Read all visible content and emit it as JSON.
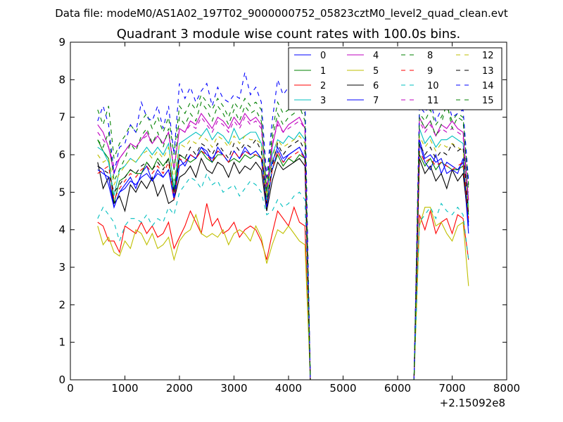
{
  "chart_data": {
    "type": "line",
    "suptitle": "Data file: modeM0/AS1A02_197T02_9000000752_05823cztM0_level2_quad_clean.evt",
    "title": "Quadrant 3 module wise count rates with 100.0s bins.",
    "xlabel": "",
    "ylabel": "",
    "xlim": [
      0,
      8000
    ],
    "ylim": [
      0,
      9
    ],
    "x_offset_label": "+2.15092e8",
    "x_ticks": [
      "0",
      "1000",
      "2000",
      "3000",
      "4000",
      "5000",
      "6000",
      "7000",
      "8000"
    ],
    "y_ticks": [
      "0",
      "1",
      "2",
      "3",
      "4",
      "5",
      "6",
      "7",
      "8",
      "9"
    ],
    "grid": false,
    "legend_position": "top-right",
    "legend_columns": 4,
    "x": [
      500,
      600,
      700,
      800,
      900,
      1000,
      1100,
      1200,
      1300,
      1400,
      1500,
      1600,
      1700,
      1800,
      1900,
      2000,
      2100,
      2200,
      2300,
      2400,
      2500,
      2600,
      2700,
      2800,
      2900,
      3000,
      3100,
      3200,
      3300,
      3400,
      3500,
      3600,
      3700,
      3800,
      3900,
      4000,
      4100,
      4200,
      4300,
      4400,
      4500,
      4600,
      4700,
      4800,
      4900,
      5000,
      5100,
      5200,
      5300,
      5400,
      5500,
      5600,
      5700,
      5800,
      5900,
      6000,
      6100,
      6200,
      6300,
      6400,
      6500,
      6600,
      6700,
      6800,
      6900,
      7000,
      7100,
      7200,
      7300
    ],
    "series": [
      {
        "name": "0",
        "color": "#0000ff",
        "dash": "solid",
        "values": [
          5.7,
          5.6,
          5.2,
          4.6,
          5.0,
          5.2,
          5.4,
          5.1,
          5.5,
          5.7,
          5.3,
          5.6,
          5.4,
          5.6,
          4.9,
          5.9,
          5.7,
          6.0,
          5.9,
          6.2,
          6.1,
          5.8,
          6.2,
          6.0,
          5.8,
          6.1,
          5.9,
          6.2,
          6.0,
          6.1,
          5.9,
          5.1,
          5.8,
          6.2,
          5.9,
          6.0,
          6.1,
          6.2,
          5.9,
          0,
          0,
          0,
          0,
          0,
          0,
          0,
          0,
          0,
          0,
          0,
          0,
          0,
          0,
          0,
          0,
          0,
          0,
          0,
          0,
          6.3,
          5.8,
          5.6,
          6.0,
          5.5,
          5.8,
          5.7,
          5.6,
          5.8,
          3.9
        ]
      },
      {
        "name": "1",
        "color": "#008000",
        "dash": "solid",
        "values": [
          6.4,
          6.1,
          5.9,
          4.7,
          5.3,
          5.4,
          5.6,
          5.5,
          5.5,
          5.8,
          5.6,
          5.9,
          5.7,
          5.9,
          5.0,
          6.0,
          5.9,
          5.8,
          5.9,
          6.1,
          5.9,
          5.8,
          6.0,
          6.0,
          5.8,
          5.9,
          5.8,
          6.0,
          5.9,
          6.0,
          5.9,
          4.7,
          5.6,
          6.0,
          5.7,
          5.9,
          5.8,
          6.0,
          5.9,
          0,
          0,
          0,
          0,
          0,
          0,
          0,
          0,
          0,
          0,
          0,
          0,
          0,
          0,
          0,
          0,
          0,
          0,
          0,
          0,
          6.0,
          5.7,
          5.9,
          5.6,
          5.8,
          5.7,
          5.6,
          5.6,
          5.7,
          4.4
        ]
      },
      {
        "name": "2",
        "color": "#ff0000",
        "dash": "solid",
        "values": [
          4.2,
          4.1,
          3.7,
          3.7,
          3.4,
          4.1,
          4.0,
          3.9,
          4.2,
          3.9,
          4.1,
          3.8,
          3.9,
          4.2,
          3.5,
          3.8,
          4.1,
          4.5,
          4.2,
          3.9,
          4.7,
          4.1,
          4.3,
          3.9,
          4.0,
          4.2,
          3.8,
          4.0,
          4.1,
          4.0,
          3.7,
          3.2,
          3.9,
          4.5,
          4.3,
          4.1,
          4.6,
          4.2,
          4.1,
          0,
          0,
          0,
          0,
          0,
          0,
          0,
          0,
          0,
          0,
          0,
          0,
          0,
          0,
          0,
          0,
          0,
          0,
          0,
          0,
          4.4,
          4.0,
          4.5,
          3.9,
          4.2,
          4.3,
          3.9,
          4.4,
          4.3,
          3.2
        ]
      },
      {
        "name": "3",
        "color": "#00bfbf",
        "dash": "solid",
        "values": [
          6.2,
          6.1,
          5.8,
          4.9,
          5.6,
          5.7,
          5.9,
          5.8,
          6.0,
          6.2,
          6.0,
          6.2,
          6.0,
          6.3,
          5.1,
          6.3,
          6.4,
          6.5,
          6.6,
          6.5,
          6.7,
          6.4,
          6.6,
          6.5,
          6.3,
          6.7,
          6.4,
          6.5,
          6.6,
          6.6,
          6.3,
          4.8,
          6.0,
          6.4,
          6.3,
          6.5,
          6.4,
          6.6,
          6.4,
          0,
          0,
          0,
          0,
          0,
          0,
          0,
          0,
          0,
          0,
          0,
          0,
          0,
          0,
          0,
          0,
          0,
          0,
          0,
          0,
          6.7,
          6.3,
          6.5,
          6.2,
          6.4,
          6.4,
          6.5,
          6.4,
          6.3,
          4.6
        ]
      },
      {
        "name": "4",
        "color": "#bf00bf",
        "dash": "solid",
        "values": [
          6.8,
          6.6,
          6.2,
          5.5,
          5.9,
          6.1,
          6.3,
          6.2,
          6.4,
          6.6,
          6.3,
          6.5,
          6.3,
          6.6,
          5.6,
          6.7,
          6.6,
          6.9,
          6.8,
          7.1,
          6.9,
          6.7,
          7.0,
          6.9,
          6.7,
          7.0,
          6.8,
          7.1,
          6.9,
          7.0,
          6.8,
          5.0,
          6.2,
          6.9,
          6.6,
          6.8,
          6.9,
          7.0,
          6.7,
          0,
          0,
          0,
          0,
          0,
          0,
          0,
          0,
          0,
          0,
          0,
          0,
          0,
          0,
          0,
          0,
          0,
          0,
          0,
          0,
          7.0,
          6.7,
          6.9,
          6.5,
          6.8,
          6.7,
          6.9,
          6.7,
          6.6,
          4.8
        ]
      },
      {
        "name": "5",
        "color": "#bfbf00",
        "dash": "solid",
        "values": [
          4.1,
          3.6,
          3.8,
          3.4,
          3.3,
          3.7,
          3.5,
          4.0,
          3.9,
          3.6,
          3.9,
          3.5,
          3.6,
          3.8,
          3.2,
          3.7,
          3.9,
          4.0,
          4.4,
          3.9,
          3.8,
          3.9,
          3.8,
          4.0,
          3.6,
          3.9,
          4.0,
          3.9,
          3.7,
          4.1,
          3.8,
          3.1,
          3.6,
          4.0,
          3.9,
          4.1,
          3.9,
          3.7,
          3.6,
          0,
          0,
          0,
          0,
          0,
          0,
          0,
          0,
          0,
          0,
          0,
          0,
          0,
          0,
          0,
          0,
          0,
          0,
          0,
          0,
          4.1,
          4.6,
          4.6,
          4.1,
          4.2,
          3.9,
          3.7,
          4.1,
          4.2,
          2.5
        ]
      },
      {
        "name": "6",
        "color": "#000000",
        "dash": "solid",
        "values": [
          5.8,
          5.1,
          5.4,
          4.7,
          4.9,
          4.5,
          5.2,
          5.0,
          5.3,
          5.1,
          5.4,
          4.9,
          5.2,
          4.7,
          4.8,
          5.4,
          5.5,
          5.7,
          5.4,
          5.9,
          5.6,
          5.5,
          5.8,
          5.7,
          5.4,
          5.8,
          5.5,
          5.7,
          5.6,
          5.8,
          5.6,
          4.5,
          5.3,
          5.8,
          5.6,
          5.7,
          5.8,
          5.9,
          5.7,
          0,
          0,
          0,
          0,
          0,
          0,
          0,
          0,
          0,
          0,
          0,
          0,
          0,
          0,
          0,
          0,
          0,
          0,
          0,
          0,
          5.9,
          5.5,
          5.7,
          5.3,
          5.5,
          5.1,
          5.6,
          5.3,
          5.5,
          4.2
        ]
      },
      {
        "name": "7",
        "color": "#0000ff",
        "dash": "solid",
        "values": [
          5.6,
          5.5,
          5.4,
          4.6,
          5.0,
          5.1,
          5.3,
          5.2,
          5.4,
          5.5,
          5.3,
          5.5,
          5.4,
          5.6,
          4.8,
          5.7,
          5.8,
          6.0,
          5.9,
          6.2,
          6.0,
          5.9,
          6.1,
          6.0,
          5.8,
          6.1,
          5.9,
          6.1,
          6.0,
          6.1,
          5.9,
          4.6,
          5.6,
          6.1,
          5.8,
          6.0,
          6.1,
          6.2,
          5.9,
          0,
          0,
          0,
          0,
          0,
          0,
          0,
          0,
          0,
          0,
          0,
          0,
          0,
          0,
          0,
          0,
          0,
          0,
          0,
          0,
          6.4,
          5.9,
          6.0,
          5.8,
          5.9,
          5.5,
          5.6,
          5.5,
          5.9,
          4.1
        ]
      },
      {
        "name": "8",
        "color": "#008000",
        "dash": "dashed",
        "values": [
          7.2,
          6.8,
          7.3,
          5.9,
          6.3,
          6.5,
          6.8,
          6.6,
          6.9,
          7.1,
          6.7,
          7.0,
          6.6,
          7.0,
          6.0,
          7.3,
          7.1,
          7.4,
          7.2,
          7.6,
          7.4,
          7.2,
          7.5,
          7.3,
          7.0,
          7.4,
          7.2,
          7.5,
          7.3,
          7.4,
          7.2,
          5.2,
          6.6,
          7.4,
          7.1,
          7.2,
          7.3,
          7.5,
          7.1,
          0,
          0,
          0,
          0,
          0,
          0,
          0,
          0,
          0,
          0,
          0,
          0,
          0,
          0,
          0,
          0,
          0,
          0,
          0,
          0,
          7.1,
          6.9,
          7.2,
          6.8,
          7.0,
          7.3,
          6.9,
          7.1,
          7.0,
          5.2
        ]
      },
      {
        "name": "9",
        "color": "#ff0000",
        "dash": "dashed",
        "values": [
          5.5,
          5.6,
          5.7,
          4.8,
          5.1,
          5.3,
          5.5,
          5.4,
          5.6,
          5.7,
          5.5,
          5.7,
          5.5,
          5.8,
          4.8,
          5.9,
          5.8,
          6.0,
          5.9,
          6.1,
          6.0,
          5.8,
          6.1,
          6.0,
          5.8,
          6.1,
          5.9,
          6.1,
          6.0,
          6.0,
          5.9,
          4.7,
          5.6,
          6.1,
          5.8,
          5.9,
          6.0,
          6.1,
          5.9,
          0,
          0,
          0,
          0,
          0,
          0,
          0,
          0,
          0,
          0,
          0,
          0,
          0,
          0,
          0,
          0,
          0,
          0,
          0,
          0,
          6.1,
          5.8,
          5.9,
          5.7,
          5.8,
          5.7,
          5.6,
          5.7,
          5.8,
          4.3
        ]
      },
      {
        "name": "10",
        "color": "#00bfbf",
        "dash": "dashed",
        "values": [
          4.3,
          4.6,
          4.4,
          4.2,
          3.7,
          4.1,
          4.3,
          4.3,
          4.2,
          4.4,
          4.1,
          4.3,
          4.2,
          4.6,
          4.4,
          5.0,
          5.2,
          5.4,
          5.3,
          5.1,
          5.5,
          5.2,
          5.3,
          5.0,
          5.1,
          5.2,
          4.9,
          5.1,
          5.3,
          5.2,
          5.0,
          4.4,
          4.5,
          4.8,
          4.6,
          4.7,
          4.9,
          5.0,
          4.8,
          0,
          0,
          0,
          0,
          0,
          0,
          0,
          0,
          0,
          0,
          0,
          0,
          0,
          0,
          0,
          0,
          0,
          0,
          0,
          0,
          4.2,
          4.4,
          4.6,
          4.3,
          4.7,
          4.5,
          4.4,
          4.6,
          4.4,
          3.2
        ]
      },
      {
        "name": "11",
        "color": "#bf00bf",
        "dash": "dashed",
        "values": [
          6.6,
          6.4,
          6.2,
          5.7,
          5.9,
          6.1,
          6.3,
          6.2,
          6.4,
          6.5,
          6.3,
          6.5,
          6.3,
          6.6,
          5.6,
          6.7,
          6.6,
          6.8,
          6.7,
          7.0,
          6.8,
          6.6,
          6.9,
          6.8,
          6.6,
          6.9,
          6.7,
          7.0,
          6.8,
          6.9,
          6.7,
          5.1,
          6.3,
          6.8,
          6.6,
          6.7,
          6.8,
          6.9,
          6.7,
          0,
          0,
          0,
          0,
          0,
          0,
          0,
          0,
          0,
          0,
          0,
          0,
          0,
          0,
          0,
          0,
          0,
          0,
          0,
          0,
          6.9,
          6.6,
          6.8,
          6.5,
          6.7,
          6.6,
          6.7,
          6.6,
          6.5,
          4.7
        ]
      },
      {
        "name": "12",
        "color": "#bfbf00",
        "dash": "dashed",
        "values": [
          6.0,
          5.8,
          5.9,
          5.2,
          5.5,
          5.7,
          5.9,
          5.8,
          6.0,
          6.1,
          5.9,
          6.1,
          5.9,
          6.2,
          5.3,
          6.3,
          6.2,
          6.4,
          6.3,
          6.5,
          6.4,
          6.2,
          6.5,
          6.4,
          6.2,
          6.5,
          6.3,
          6.5,
          6.4,
          6.4,
          6.3,
          4.9,
          5.9,
          6.4,
          6.2,
          6.3,
          6.4,
          6.5,
          6.3,
          0,
          0,
          0,
          0,
          0,
          0,
          0,
          0,
          0,
          0,
          0,
          0,
          0,
          0,
          0,
          0,
          0,
          0,
          0,
          0,
          6.5,
          6.2,
          6.4,
          6.1,
          6.3,
          6.2,
          6.3,
          6.2,
          6.1,
          4.5
        ]
      },
      {
        "name": "13",
        "color": "#000000",
        "dash": "dashed",
        "values": [
          5.7,
          5.6,
          5.5,
          5.0,
          5.2,
          5.4,
          5.6,
          5.5,
          5.7,
          5.8,
          5.6,
          5.8,
          5.6,
          5.9,
          5.0,
          6.0,
          5.9,
          6.2,
          6.0,
          6.3,
          6.2,
          6.0,
          6.3,
          6.1,
          5.9,
          6.3,
          6.1,
          6.3,
          6.2,
          6.4,
          6.1,
          4.7,
          5.7,
          6.3,
          6.0,
          6.2,
          6.3,
          6.4,
          6.1,
          0,
          0,
          0,
          0,
          0,
          0,
          0,
          0,
          0,
          0,
          0,
          0,
          0,
          0,
          0,
          0,
          0,
          0,
          0,
          0,
          6.3,
          6.0,
          6.2,
          5.9,
          6.1,
          6.0,
          6.3,
          6.1,
          6.2,
          4.4
        ]
      },
      {
        "name": "14",
        "color": "#0000ff",
        "dash": "dashed",
        "values": [
          6.9,
          7.3,
          6.8,
          5.5,
          6.2,
          6.3,
          6.8,
          6.6,
          7.4,
          7.0,
          6.9,
          7.3,
          6.7,
          7.3,
          6.0,
          7.9,
          7.5,
          7.8,
          7.4,
          7.7,
          7.9,
          7.3,
          7.8,
          7.5,
          7.4,
          7.6,
          7.5,
          8.2,
          7.6,
          7.8,
          7.4,
          5.4,
          6.9,
          8.0,
          7.6,
          7.8,
          7.9,
          8.1,
          7.6,
          0,
          0,
          0,
          0,
          0,
          0,
          0,
          0,
          0,
          0,
          0,
          0,
          0,
          0,
          0,
          0,
          0,
          0,
          0,
          0,
          7.3,
          7.1,
          7.4,
          6.9,
          7.2,
          7.5,
          7.0,
          7.1,
          7.2,
          5.3
        ]
      },
      {
        "name": "15",
        "color": "#008000",
        "dash": "dashed",
        "values": [
          6.4,
          6.2,
          6.6,
          5.3,
          5.6,
          5.9,
          6.3,
          6.1,
          6.5,
          6.7,
          6.3,
          6.6,
          6.2,
          6.7,
          5.6,
          7.0,
          6.8,
          7.1,
          6.9,
          7.4,
          7.2,
          6.9,
          7.3,
          7.1,
          6.8,
          7.2,
          6.9,
          7.3,
          7.1,
          7.2,
          6.9,
          5.0,
          6.4,
          7.1,
          6.8,
          7.0,
          7.1,
          7.3,
          6.9,
          0,
          0,
          0,
          0,
          0,
          0,
          0,
          0,
          0,
          0,
          0,
          0,
          0,
          0,
          0,
          0,
          0,
          0,
          0,
          0,
          7.0,
          6.7,
          6.9,
          6.5,
          6.8,
          7.4,
          6.7,
          7.0,
          6.9,
          5.0
        ]
      }
    ]
  }
}
